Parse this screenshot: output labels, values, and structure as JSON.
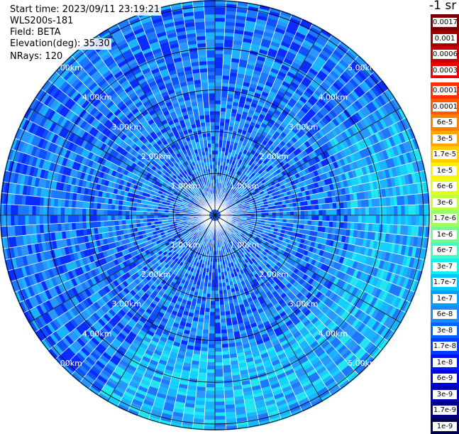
{
  "info": {
    "start_time": "Start time: 2023/09/11 23:19:21",
    "instrument": "WLS200s-181",
    "field": "Field: BETA",
    "elevation": "Elevation(deg): 35.30",
    "nrays": "NRays: 120"
  },
  "units": "-1 sr",
  "range_labels": [
    "1.00km",
    "2.00km",
    "3.00km",
    "4.00km",
    "5.00km"
  ],
  "colorbar": {
    "upper": [
      {
        "label": "0.0017",
        "color": "#7a0000"
      },
      {
        "label": "0.001",
        "color": "#a00000"
      },
      {
        "label": "0.0006",
        "color": "#c80000"
      },
      {
        "label": "0.0003",
        "color": "#ee0000"
      }
    ],
    "lower": [
      {
        "label": "0.00017",
        "color": "#ff3000"
      },
      {
        "label": "0.0001",
        "color": "#ff5a00"
      },
      {
        "label": "6e-5",
        "color": "#ff8000"
      },
      {
        "label": "3e-5",
        "color": "#ffa500"
      },
      {
        "label": "1.7e-5",
        "color": "#ffcc00"
      },
      {
        "label": "1e-5",
        "color": "#fff000"
      },
      {
        "label": "6e-6",
        "color": "#e6ff1a"
      },
      {
        "label": "3e-6",
        "color": "#c0ff40"
      },
      {
        "label": "1.7e-6",
        "color": "#9aff66"
      },
      {
        "label": "1e-6",
        "color": "#70ff8c"
      },
      {
        "label": "6e-7",
        "color": "#40ffbf"
      },
      {
        "label": "3e-7",
        "color": "#14f0e8"
      },
      {
        "label": "1.7e-7",
        "color": "#00c8ff"
      },
      {
        "label": "1e-7",
        "color": "#00a0ff"
      },
      {
        "label": "6e-8",
        "color": "#1e88ff"
      },
      {
        "label": "3e-8",
        "color": "#0064ff"
      },
      {
        "label": "1.7e-8",
        "color": "#003cff"
      },
      {
        "label": "1e-8",
        "color": "#0014ff"
      },
      {
        "label": "6e-9",
        "color": "#0000e6"
      },
      {
        "label": "3e-9",
        "color": "#0000b4"
      },
      {
        "label": "1.7e-9",
        "color": "#000080"
      },
      {
        "label": "1e-9",
        "color": "#000050"
      }
    ]
  }
}
